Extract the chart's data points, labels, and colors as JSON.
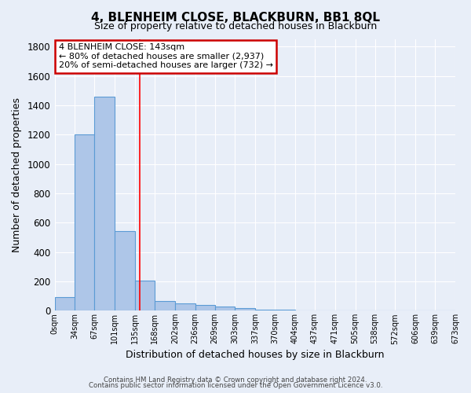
{
  "title": "4, BLENHEIM CLOSE, BLACKBURN, BB1 8QL",
  "subtitle": "Size of property relative to detached houses in Blackburn",
  "xlabel": "Distribution of detached houses by size in Blackburn",
  "ylabel": "Number of detached properties",
  "bin_edges": [
    0,
    34,
    67,
    101,
    135,
    168,
    202,
    236,
    269,
    303,
    337,
    370,
    404,
    437,
    471,
    505,
    538,
    572,
    606,
    639,
    673
  ],
  "counts": [
    90,
    1200,
    1460,
    540,
    205,
    65,
    50,
    40,
    28,
    15,
    8,
    5,
    0,
    0,
    0,
    0,
    0,
    0,
    0,
    0
  ],
  "bar_color": "#aec6e8",
  "bar_edge_color": "#5b9bd5",
  "property_size": 143,
  "red_line_x": 143,
  "annotation_title": "4 BLENHEIM CLOSE: 143sqm",
  "annotation_line1": "← 80% of detached houses are smaller (2,937)",
  "annotation_line2": "20% of semi-detached houses are larger (732) →",
  "annotation_box_color": "#ffffff",
  "annotation_box_edge": "#cc0000",
  "footer1": "Contains HM Land Registry data © Crown copyright and database right 2024.",
  "footer2": "Contains public sector information licensed under the Open Government Licence v3.0.",
  "bg_color": "#e8eef8",
  "plot_bg_color": "#e8eef8",
  "grid_color": "#ffffff",
  "ylim": [
    0,
    1850
  ],
  "yticks": [
    0,
    200,
    400,
    600,
    800,
    1000,
    1200,
    1400,
    1600,
    1800
  ],
  "tick_labels": [
    "0sqm",
    "34sqm",
    "67sqm",
    "101sqm",
    "135sqm",
    "168sqm",
    "202sqm",
    "236sqm",
    "269sqm",
    "303sqm",
    "337sqm",
    "370sqm",
    "404sqm",
    "437sqm",
    "471sqm",
    "505sqm",
    "538sqm",
    "572sqm",
    "606sqm",
    "639sqm",
    "673sqm"
  ]
}
